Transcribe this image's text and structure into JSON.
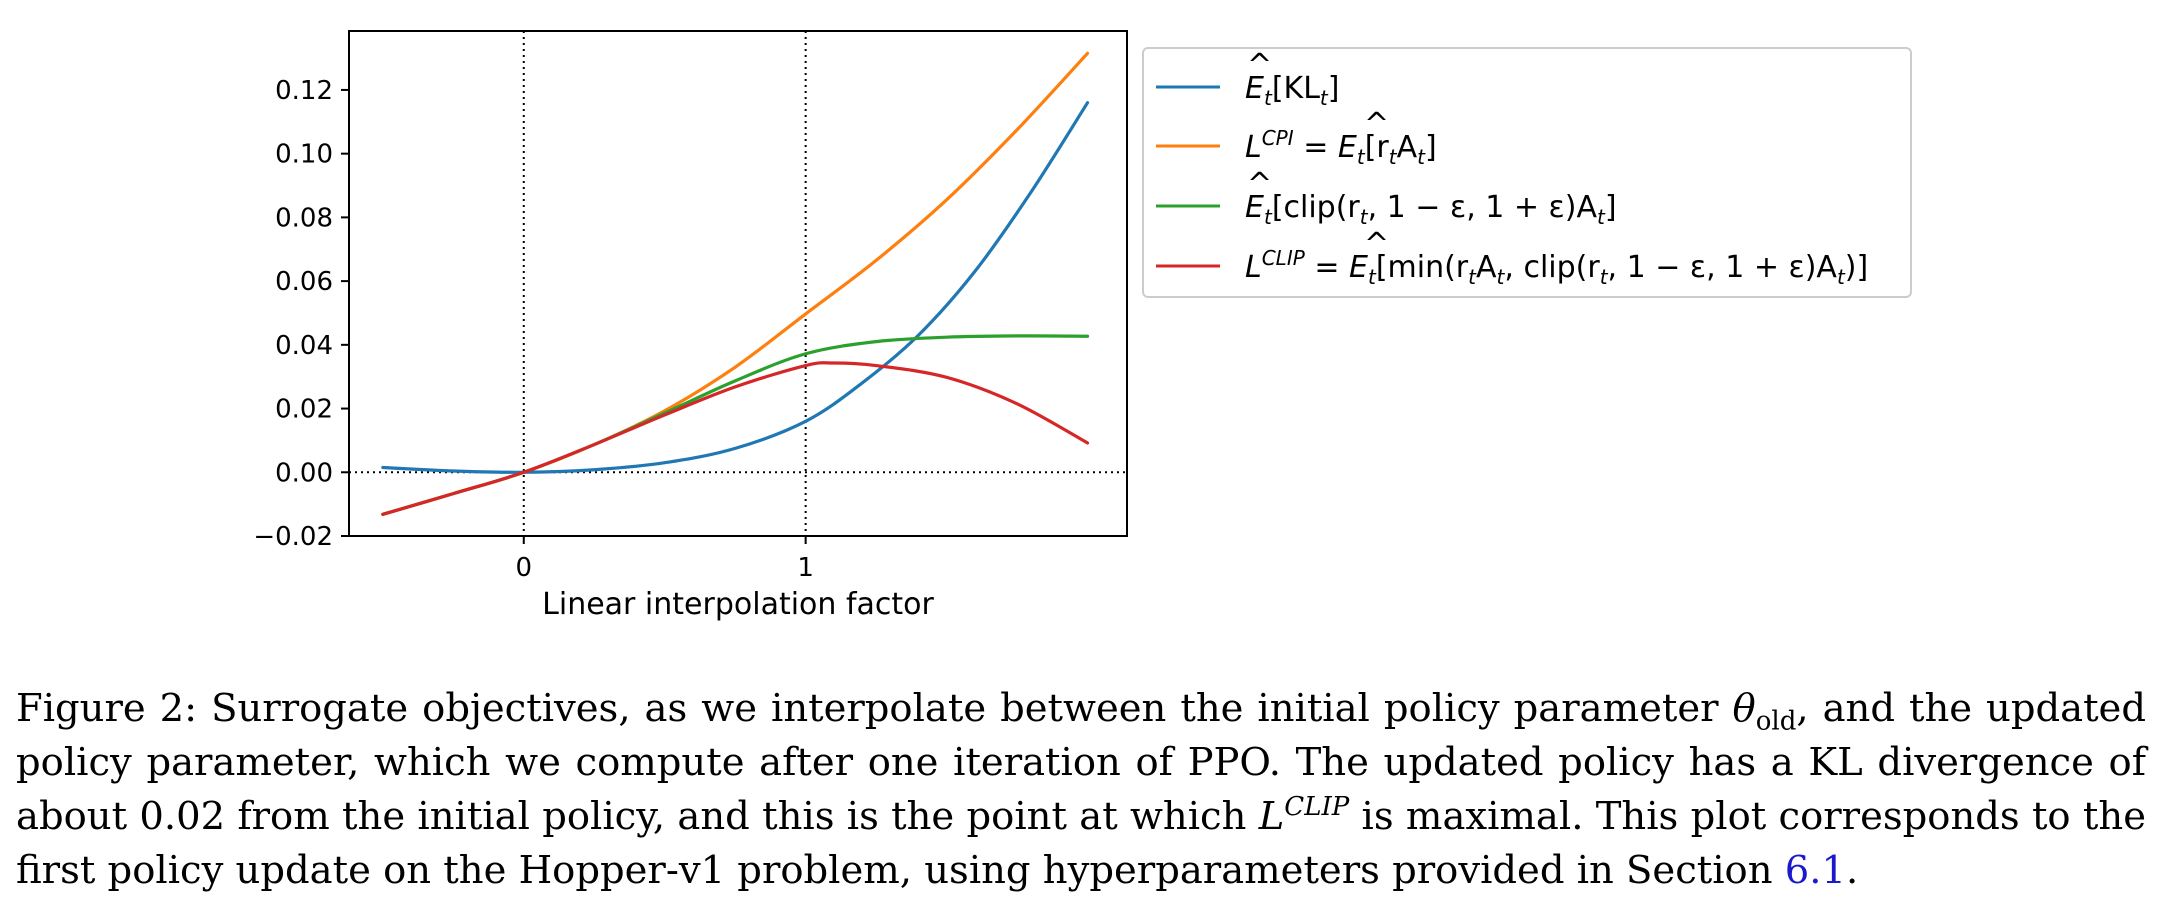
{
  "chart_data": {
    "type": "line",
    "xlabel": "Linear interpolation factor",
    "ylabel": "",
    "xlim": [
      -0.62,
      2.14
    ],
    "ylim": [
      -0.02,
      0.1385
    ],
    "xticks": [
      {
        "value": 0,
        "label": "0"
      },
      {
        "value": 1,
        "label": "1"
      }
    ],
    "yticks": [
      {
        "value": -0.02,
        "label": "−0.02"
      },
      {
        "value": 0.0,
        "label": "0.00"
      },
      {
        "value": 0.02,
        "label": "0.02"
      },
      {
        "value": 0.04,
        "label": "0.04"
      },
      {
        "value": 0.06,
        "label": "0.06"
      },
      {
        "value": 0.08,
        "label": "0.08"
      },
      {
        "value": 0.1,
        "label": "0.10"
      },
      {
        "value": 0.12,
        "label": "0.12"
      }
    ],
    "grid": false,
    "reference_lines": {
      "x": [
        0,
        1
      ],
      "y": [
        0
      ]
    },
    "legend_position": "outside-right-top",
    "series": [
      {
        "name": "Ê_t[KL_t]",
        "color": "#1f77b4",
        "x": [
          -0.5,
          -0.25,
          0.0,
          0.25,
          0.5,
          0.75,
          1.0,
          1.2,
          1.4,
          1.6,
          1.8,
          2.0
        ],
        "y": [
          0.0015,
          0.0004,
          0.0,
          0.0008,
          0.003,
          0.0075,
          0.016,
          0.028,
          0.043,
          0.063,
          0.088,
          0.116
        ]
      },
      {
        "name": "L^CPI = Ê_t[r_t A_t]",
        "color": "#ff7f0e",
        "x": [
          -0.5,
          -0.25,
          0.0,
          0.25,
          0.5,
          0.75,
          1.0,
          1.25,
          1.5,
          1.75,
          2.0
        ],
        "y": [
          -0.0132,
          -0.0067,
          0.0,
          0.0087,
          0.0193,
          0.033,
          0.0497,
          0.0665,
          0.0855,
          0.1075,
          0.1315
        ]
      },
      {
        "name": "Ê_t[clip(r_t, 1−ε, 1+ε)A_t]",
        "color": "#2ca02c",
        "x": [
          -0.5,
          -0.25,
          0.0,
          0.25,
          0.5,
          0.75,
          1.0,
          1.25,
          1.5,
          1.75,
          2.0
        ],
        "y": [
          -0.0132,
          -0.0067,
          0.0,
          0.0087,
          0.0186,
          0.0287,
          0.0372,
          0.041,
          0.0424,
          0.0428,
          0.0427
        ]
      },
      {
        "name": "L^CLIP = Ê_t[min(r_t A_t, clip(r_t, 1−ε, 1+ε)A_t)]",
        "color": "#d62728",
        "x": [
          -0.5,
          -0.25,
          0.0,
          0.25,
          0.5,
          0.75,
          1.0,
          1.1,
          1.25,
          1.5,
          1.75,
          2.0
        ],
        "y": [
          -0.0132,
          -0.0067,
          0.0,
          0.0087,
          0.018,
          0.0268,
          0.0335,
          0.0343,
          0.0335,
          0.0298,
          0.0215,
          0.0092
        ]
      }
    ]
  },
  "legend": {
    "kl": {
      "E": "E",
      "t": "t",
      "body": "[KL",
      "t2": "t",
      "end": "]"
    },
    "cpi": {
      "L": "L",
      "sup": "CPI",
      "eq": " = ",
      "E": "E",
      "t": "t",
      "body1": "[r",
      "t1": "t",
      "body2": "A",
      "t2": "t",
      "end": "]"
    },
    "clip": {
      "E": "E",
      "t": "t",
      "body1": "[clip(r",
      "t1": "t",
      "body2": ", 1 − ε, 1 + ε)A",
      "t2": "t",
      "end": "]"
    },
    "lclip": {
      "L": "L",
      "sup": "CLIP",
      "eq": " = ",
      "E": "E",
      "t": "t",
      "body1": "[min(r",
      "t1": "t",
      "body2": "A",
      "t2": "t",
      "body3": ", clip(r",
      "t3": "t",
      "body4": ", 1 − ε, 1 + ε)A",
      "t4": "t",
      "end": ")]"
    }
  },
  "caption": {
    "p1": "Figure 2: Surrogate objectives, as we interpolate between the initial policy parameter ",
    "theta": "θ",
    "theta_sub": "old",
    "p2": ", and the updated policy parameter, which we compute after one iteration of PPO. The updated policy has a KL divergence of about 0.02 from the initial policy, and this is the point at which ",
    "L": "L",
    "L_sup": "CLIP",
    "p3": " is maximal. This plot corresponds to the first policy update on the Hopper-v1 problem, using hyperparameters provided in Section ",
    "section": "6.1",
    "p4": "."
  }
}
